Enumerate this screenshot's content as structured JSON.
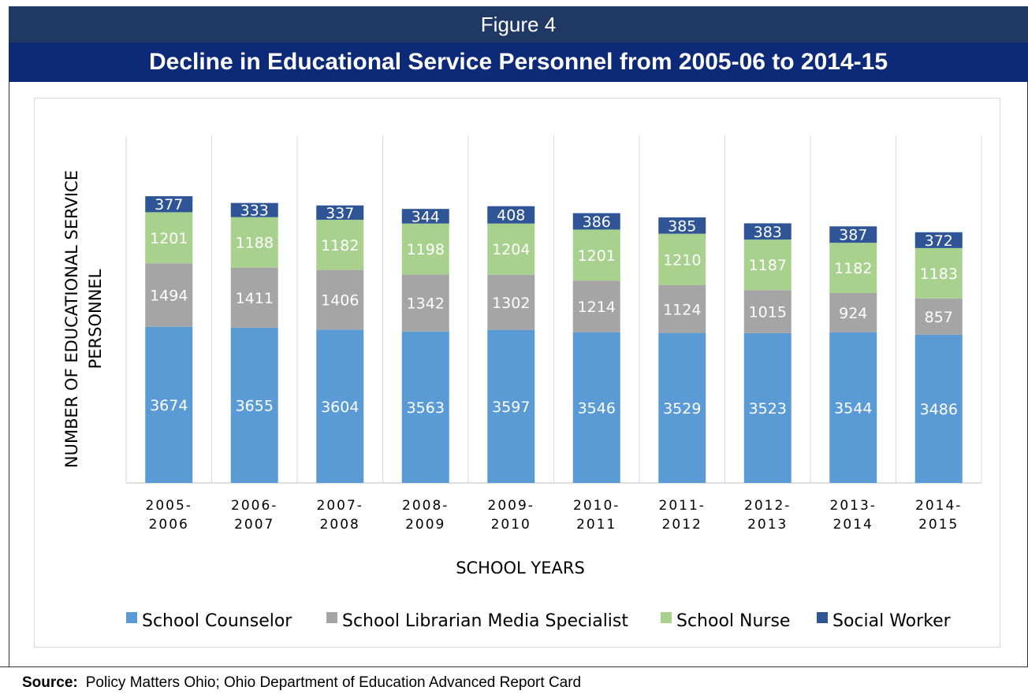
{
  "figure_label": "Figure 4",
  "source": {
    "label": "Source:",
    "text": "Policy Matters Ohio; Ohio Department of Education Advanced Report Card"
  },
  "chart_data": {
    "type": "bar",
    "stacked": true,
    "title": "Decline in Educational Service Personnel from 2005-06 to 2014-15",
    "xlabel": "SCHOOL YEARS",
    "ylabel": [
      "NUMBER OF EDUCATIONAL SERVICE",
      "PERSONNEL"
    ],
    "categories": [
      [
        "2005-",
        "2006"
      ],
      [
        "2006-",
        "2007"
      ],
      [
        "2007-",
        "2008"
      ],
      [
        "2008-",
        "2009"
      ],
      [
        "2009-",
        "2010"
      ],
      [
        "2010-",
        "2011"
      ],
      [
        "2011-",
        "2012"
      ],
      [
        "2012-",
        "2013"
      ],
      [
        "2013-",
        "2014"
      ],
      [
        "2014-",
        "2015"
      ]
    ],
    "series": [
      {
        "name": "School Counselor",
        "color": "#5b9bd5",
        "label_color": "#ffffff",
        "values": [
          3674,
          3655,
          3604,
          3563,
          3597,
          3546,
          3529,
          3523,
          3544,
          3486
        ]
      },
      {
        "name": "School Librarian Media Specialist",
        "color": "#a5a5a5",
        "label_color": "#ffffff",
        "values": [
          1494,
          1411,
          1406,
          1342,
          1302,
          1214,
          1124,
          1015,
          924,
          857
        ]
      },
      {
        "name": "School Nurse",
        "color": "#a9d18e",
        "label_color": "#ffffff",
        "values": [
          1201,
          1188,
          1182,
          1198,
          1204,
          1201,
          1210,
          1187,
          1182,
          1183
        ]
      },
      {
        "name": "Social Worker",
        "color": "#2f5597",
        "label_color": "#ffffff",
        "values": [
          377,
          333,
          337,
          344,
          408,
          386,
          385,
          383,
          387,
          372
        ]
      }
    ],
    "ylim": [
      0,
      8000
    ],
    "grid": false,
    "legend": "bottom"
  }
}
